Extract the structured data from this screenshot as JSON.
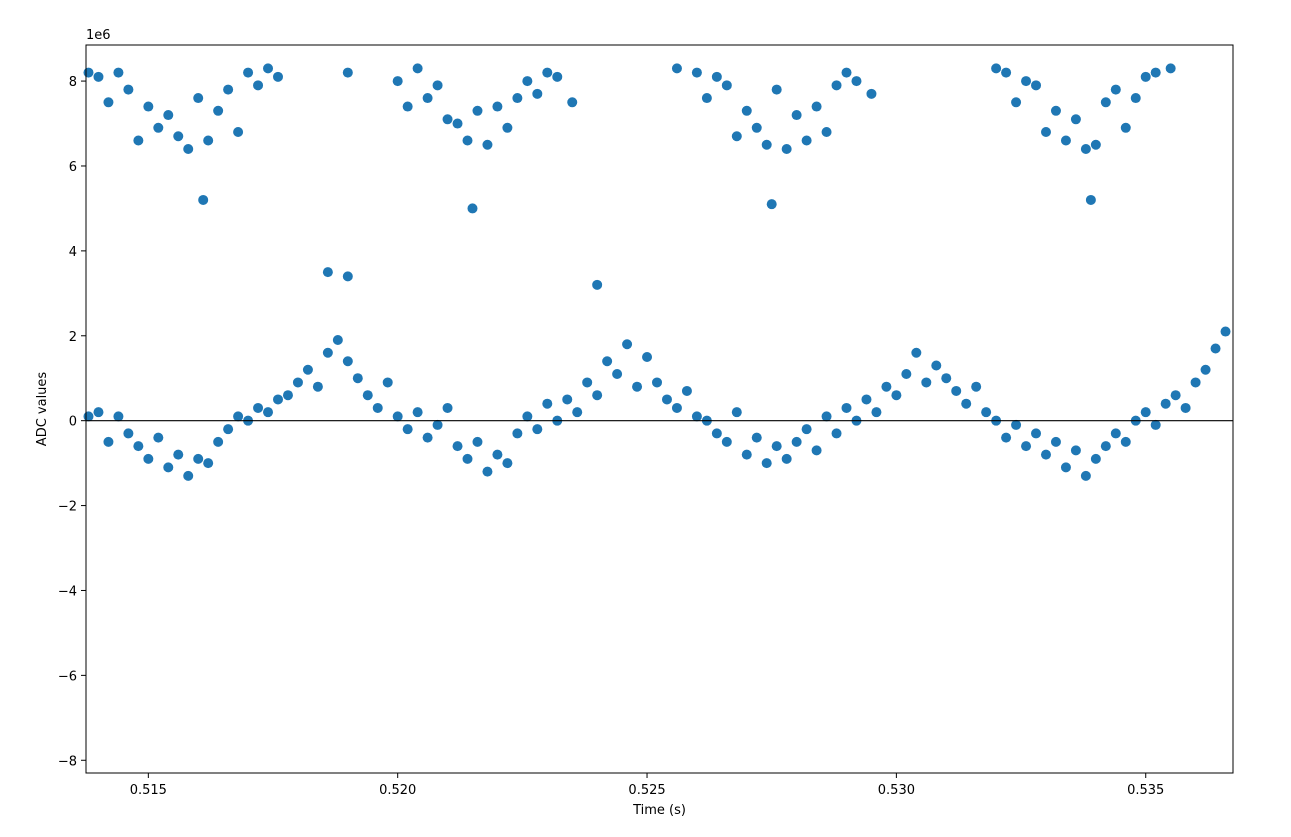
{
  "chart_data": {
    "type": "scatter",
    "xlabel": "Time (s)",
    "ylabel": "ADC values",
    "offset_text": "1e6",
    "xlim": [
      0.51375,
      0.53675
    ],
    "ylim": [
      -8300000.0,
      8850000.0
    ],
    "x_ticks": [
      0.515,
      0.52,
      0.525,
      0.53,
      0.535
    ],
    "x_tick_labels": [
      "0.515",
      "0.520",
      "0.525",
      "0.530",
      "0.535"
    ],
    "y_ticks": [
      -8000000.0,
      -6000000.0,
      -4000000.0,
      -2000000.0,
      0,
      2000000.0,
      4000000.0,
      6000000.0,
      8000000.0
    ],
    "y_tick_labels": [
      "−8",
      "−6",
      "−4",
      "−2",
      "0",
      "2",
      "4",
      "6",
      "8"
    ],
    "grid": false,
    "zero_line": true,
    "colors": {
      "points": "#1f77b4",
      "axes": "#000000"
    },
    "series": [
      {
        "x": [
          0.5138,
          0.514,
          0.5142,
          0.5144,
          0.5146,
          0.5148,
          0.515,
          0.5152,
          0.5154,
          0.5156,
          0.5158,
          0.516,
          0.5162,
          0.5164,
          0.5166,
          0.5168,
          0.517,
          0.5172,
          0.5174,
          0.5176,
          0.519,
          0.52,
          0.5202,
          0.5204,
          0.5206,
          0.5208,
          0.521,
          0.5212,
          0.5214,
          0.5216,
          0.5218,
          0.522,
          0.5222,
          0.5224,
          0.5226,
          0.5228,
          0.523,
          0.5232,
          0.5235,
          0.5256,
          0.526,
          0.5262,
          0.5264,
          0.5266,
          0.5268,
          0.527,
          0.5272,
          0.5274,
          0.5276,
          0.5278,
          0.528,
          0.5282,
          0.5284,
          0.5286,
          0.5288,
          0.529,
          0.5292,
          0.5295,
          0.532,
          0.5322,
          0.5324,
          0.5326,
          0.5328,
          0.533,
          0.5332,
          0.5334,
          0.5336,
          0.5338,
          0.534,
          0.5342,
          0.5344,
          0.5346,
          0.5348,
          0.535,
          0.5352,
          0.5355,
          0.5161,
          0.5215,
          0.5275,
          0.5339,
          0.5186,
          0.519,
          0.524,
          0.5138,
          0.514,
          0.5142,
          0.5144,
          0.5146,
          0.5148,
          0.515,
          0.5152,
          0.5154,
          0.5156,
          0.5158,
          0.516,
          0.5162,
          0.5164,
          0.5166,
          0.5168,
          0.517,
          0.5172,
          0.5174,
          0.5176,
          0.5178,
          0.518,
          0.5182,
          0.5184,
          0.5186,
          0.5188,
          0.519,
          0.5192,
          0.5194,
          0.5196,
          0.5198,
          0.52,
          0.5202,
          0.5204,
          0.5206,
          0.5208,
          0.521,
          0.5212,
          0.5214,
          0.5216,
          0.5218,
          0.522,
          0.5222,
          0.5224,
          0.5226,
          0.5228,
          0.523,
          0.5232,
          0.5234,
          0.5236,
          0.5238,
          0.524,
          0.5242,
          0.5244,
          0.5246,
          0.5248,
          0.525,
          0.5252,
          0.5254,
          0.5256,
          0.5258,
          0.526,
          0.5262,
          0.5264,
          0.5266,
          0.5268,
          0.527,
          0.5272,
          0.5274,
          0.5276,
          0.5278,
          0.528,
          0.5282,
          0.5284,
          0.5286,
          0.5288,
          0.529,
          0.5292,
          0.5294,
          0.5296,
          0.5298,
          0.53,
          0.5302,
          0.5304,
          0.5306,
          0.5308,
          0.531,
          0.5312,
          0.5314,
          0.5316,
          0.5318,
          0.532,
          0.5322,
          0.5324,
          0.5326,
          0.5328,
          0.533,
          0.5332,
          0.5334,
          0.5336,
          0.5338,
          0.534,
          0.5342,
          0.5344,
          0.5346,
          0.5348,
          0.535,
          0.5352,
          0.5354,
          0.5356,
          0.5358,
          0.536,
          0.5362,
          0.5364,
          0.5366
        ],
        "y": [
          8200000.0,
          8100000.0,
          7500000.0,
          8200000.0,
          7800000.0,
          6600000.0,
          7400000.0,
          6900000.0,
          7200000.0,
          6700000.0,
          6400000.0,
          7600000.0,
          6600000.0,
          7300000.0,
          7800000.0,
          6800000.0,
          8200000.0,
          7900000.0,
          8300000.0,
          8100000.0,
          8200000.0,
          8000000.0,
          7400000.0,
          8300000.0,
          7600000.0,
          7900000.0,
          7100000.0,
          7000000.0,
          6600000.0,
          7300000.0,
          6500000.0,
          7400000.0,
          6900000.0,
          7600000.0,
          8000000.0,
          7700000.0,
          8200000.0,
          8100000.0,
          7500000.0,
          8300000.0,
          8200000.0,
          7600000.0,
          8100000.0,
          7900000.0,
          6700000.0,
          7300000.0,
          6900000.0,
          6500000.0,
          7800000.0,
          6400000.0,
          7200000.0,
          6600000.0,
          7400000.0,
          6800000.0,
          7900000.0,
          8200000.0,
          8000000.0,
          7700000.0,
          8300000.0,
          8200000.0,
          7500000.0,
          8000000.0,
          7900000.0,
          6800000.0,
          7300000.0,
          6600000.0,
          7100000.0,
          6400000.0,
          6500000.0,
          7500000.0,
          7800000.0,
          6900000.0,
          7600000.0,
          8100000.0,
          8200000.0,
          8300000.0,
          5200000.0,
          5000000.0,
          5100000.0,
          5200000.0,
          3500000.0,
          3400000.0,
          3200000.0,
          100000.0,
          200000.0,
          -500000.0,
          100000.0,
          -300000.0,
          -600000.0,
          -900000.0,
          -400000.0,
          -1100000.0,
          -800000.0,
          -1300000.0,
          -900000.0,
          -1000000.0,
          -500000.0,
          -200000.0,
          100000.0,
          0.0,
          300000.0,
          200000.0,
          500000.0,
          600000.0,
          900000.0,
          1200000.0,
          800000.0,
          1600000.0,
          1900000.0,
          1400000.0,
          1000000.0,
          600000.0,
          300000.0,
          900000.0,
          100000.0,
          -200000.0,
          200000.0,
          -400000.0,
          -100000.0,
          300000.0,
          -600000.0,
          -900000.0,
          -500000.0,
          -1200000.0,
          -800000.0,
          -1000000.0,
          -300000.0,
          100000.0,
          -200000.0,
          400000.0,
          0.0,
          500000.0,
          200000.0,
          900000.0,
          600000.0,
          1400000.0,
          1100000.0,
          1800000.0,
          800000.0,
          1500000.0,
          900000.0,
          500000.0,
          300000.0,
          700000.0,
          100000.0,
          0.0,
          -300000.0,
          -500000.0,
          200000.0,
          -800000.0,
          -400000.0,
          -1000000.0,
          -600000.0,
          -900000.0,
          -500000.0,
          -200000.0,
          -700000.0,
          100000.0,
          -300000.0,
          300000.0,
          0.0,
          500000.0,
          200000.0,
          800000.0,
          600000.0,
          1100000.0,
          1600000.0,
          900000.0,
          1300000.0,
          1000000.0,
          700000.0,
          400000.0,
          800000.0,
          200000.0,
          0.0,
          -400000.0,
          -100000.0,
          -600000.0,
          -300000.0,
          -800000.0,
          -500000.0,
          -1100000.0,
          -700000.0,
          -1300000.0,
          -900000.0,
          -600000.0,
          -300000.0,
          -500000.0,
          0.0,
          200000.0,
          -100000.0,
          400000.0,
          600000.0,
          300000.0,
          900000.0,
          1200000.0,
          1700000.0,
          2100000.0
        ]
      }
    ]
  }
}
